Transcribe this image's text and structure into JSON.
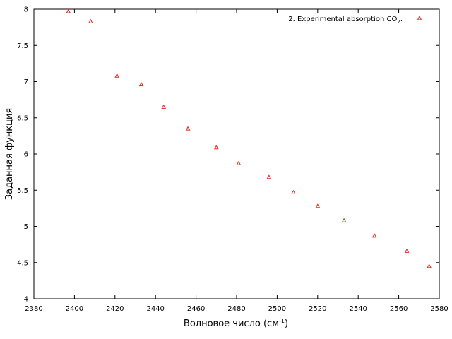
{
  "chart_data": {
    "type": "scatter",
    "xlabel": "Волновое число (см",
    "xlabel_sup": "-1",
    "xlabel_tail": ")",
    "ylabel": "Заданная функция",
    "xlim": [
      2380,
      2580
    ],
    "ylim": [
      4,
      8
    ],
    "x_ticks": [
      2380,
      2400,
      2420,
      2440,
      2460,
      2480,
      2500,
      2520,
      2540,
      2560,
      2580
    ],
    "y_ticks": [
      4,
      4.5,
      5,
      5.5,
      6,
      6.5,
      7,
      7.5,
      8
    ],
    "grid": false,
    "legend_position": "top-right",
    "marker": "triangle",
    "color": "#e8261a",
    "series": [
      {
        "name": "2. Experimental absorption CO",
        "name_sub": "2",
        "name_tail": ".",
        "x": [
          2397,
          2408,
          2421,
          2433,
          2444,
          2456,
          2470,
          2481,
          2496,
          2508,
          2520,
          2533,
          2548,
          2564,
          2575
        ],
        "y": [
          7.97,
          7.83,
          7.08,
          6.96,
          6.65,
          6.35,
          6.09,
          5.87,
          5.68,
          5.47,
          5.28,
          5.08,
          4.87,
          4.66,
          4.45
        ]
      }
    ]
  }
}
